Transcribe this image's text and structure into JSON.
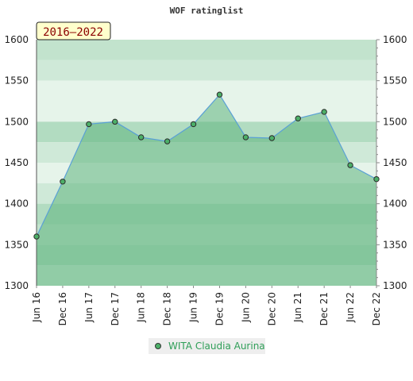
{
  "chart_data": {
    "type": "area",
    "title": "WOF ratinglist",
    "badge": "2016–2022",
    "categories": [
      "Jun 16",
      "Dec 16",
      "Jun 17",
      "Dec 17",
      "Jun 18",
      "Dec 18",
      "Jun 19",
      "Dec 19",
      "Jun 20",
      "Dec 20",
      "Jun 21",
      "Dec 21",
      "Jun 22",
      "Dec 22"
    ],
    "series": [
      {
        "name": "WITA Claudia Aurina",
        "values": [
          1360,
          1427,
          1497,
          1500,
          1481,
          1476,
          1497,
          1533,
          1481,
          1480,
          1504,
          1512,
          1447,
          1430
        ]
      }
    ],
    "ylim": [
      1300,
      1600
    ],
    "yticks": [
      1300,
      1350,
      1400,
      1450,
      1500,
      1550,
      1600
    ],
    "y_axis": "both",
    "legend_position": "bottom",
    "grid": true,
    "colors": {
      "line": "#5aa0d6",
      "fill": "#5fb57e",
      "marker": "#4caf68",
      "bands": [
        "#e6f4ea",
        "#cfe9d8",
        "#b2dcc1",
        "#c2e3cd"
      ]
    }
  }
}
